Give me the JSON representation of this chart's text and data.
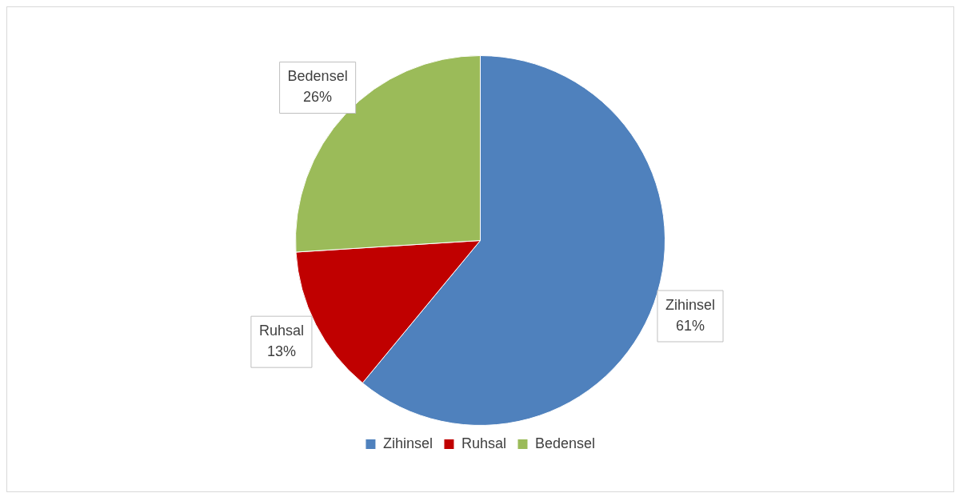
{
  "chart_data": {
    "type": "pie",
    "categories": [
      "Zihinsel",
      "Ruhsal",
      "Bedensel"
    ],
    "values": [
      61,
      13,
      26
    ],
    "colors": [
      "#4f81bd",
      "#c00000",
      "#9bbb59"
    ],
    "value_labels": [
      "61%",
      "13%",
      "26%"
    ],
    "legend": "bottom"
  }
}
